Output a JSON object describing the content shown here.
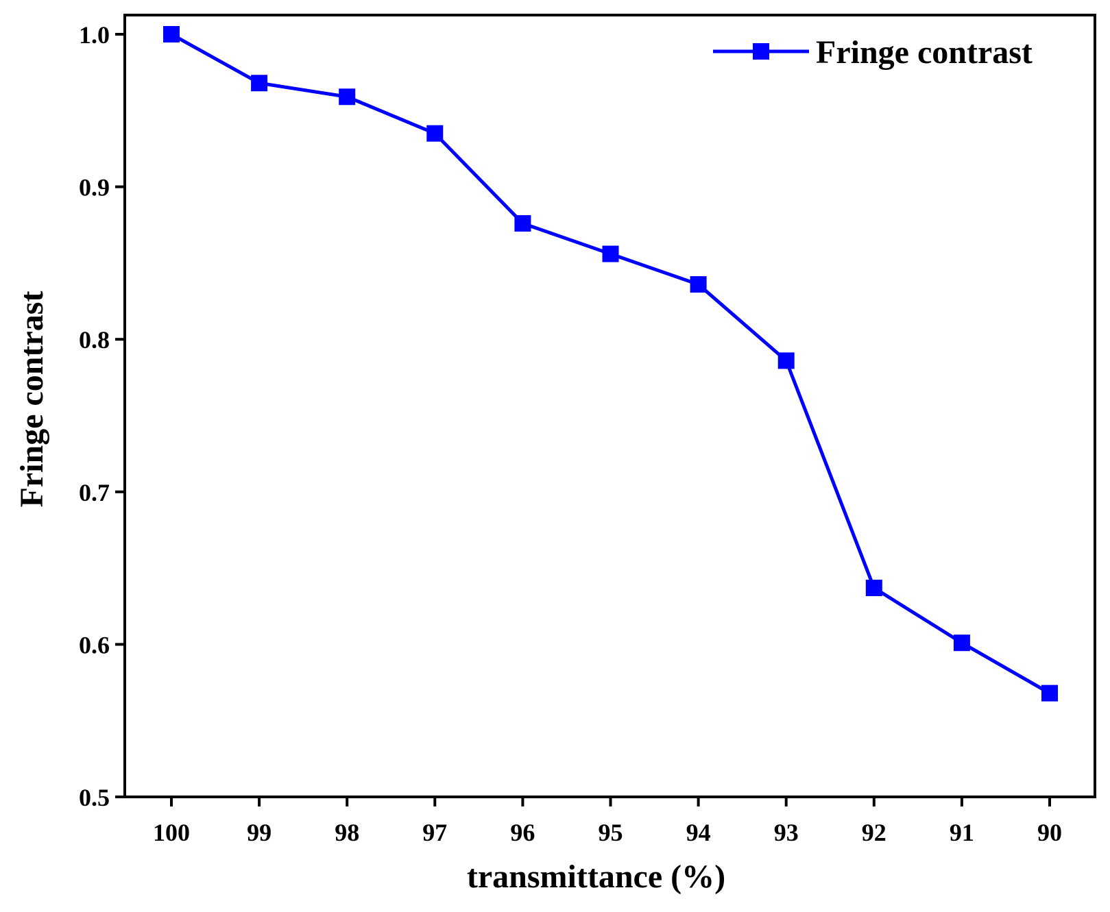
{
  "chart_data": {
    "type": "line",
    "xlabel": "transmittance (%)",
    "ylabel": "Fringe contrast",
    "x_reversed": true,
    "xlim": [
      90,
      100
    ],
    "ylim": [
      0.5,
      1.0
    ],
    "x_ticks": [
      100,
      99,
      98,
      97,
      96,
      95,
      94,
      93,
      92,
      91,
      90
    ],
    "y_ticks": [
      "0.5",
      "0.6",
      "0.7",
      "0.8",
      "0.9",
      "1.0"
    ],
    "grid": false,
    "legend_position": "top-right",
    "series": [
      {
        "name": "Fringe contrast",
        "color": "#0000ff",
        "marker": "square",
        "x": [
          100,
          99,
          98,
          97,
          96,
          95,
          94,
          93,
          92,
          91,
          90
        ],
        "y": [
          1.0,
          0.968,
          0.959,
          0.935,
          0.876,
          0.856,
          0.836,
          0.786,
          0.637,
          0.601,
          0.568
        ]
      }
    ]
  }
}
